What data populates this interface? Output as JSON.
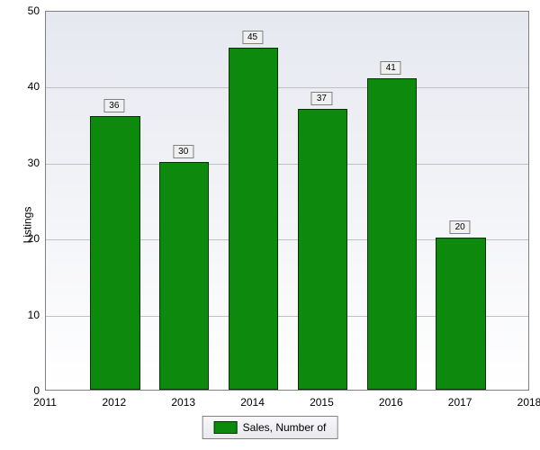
{
  "chart": {
    "type": "bar",
    "ylabel": "Listings",
    "label_fontsize": 12,
    "x_categories": [
      "2011",
      "2012",
      "2013",
      "2014",
      "2015",
      "2016",
      "2017",
      "2018"
    ],
    "data_years": [
      "2012",
      "2013",
      "2014",
      "2015",
      "2016",
      "2017"
    ],
    "values": [
      36,
      30,
      45,
      37,
      41,
      20
    ],
    "bar_color": "#0d8a0d",
    "bar_border_color": "#003300",
    "bar_width": 0.72,
    "ylim": [
      0,
      50
    ],
    "ytick_step": 10,
    "y_ticks": [
      "0",
      "10",
      "20",
      "30",
      "40",
      "50"
    ],
    "background_gradient_top": "#e6e8f0",
    "background_gradient_bottom": "#ffffff",
    "grid_color": "#c0c0c0",
    "border_color": "#808080",
    "value_label_bg": "#f0f0f0",
    "value_label_border": "#808080",
    "legend": {
      "label": "Sales, Number of",
      "swatch_color": "#0d8a0d"
    }
  }
}
